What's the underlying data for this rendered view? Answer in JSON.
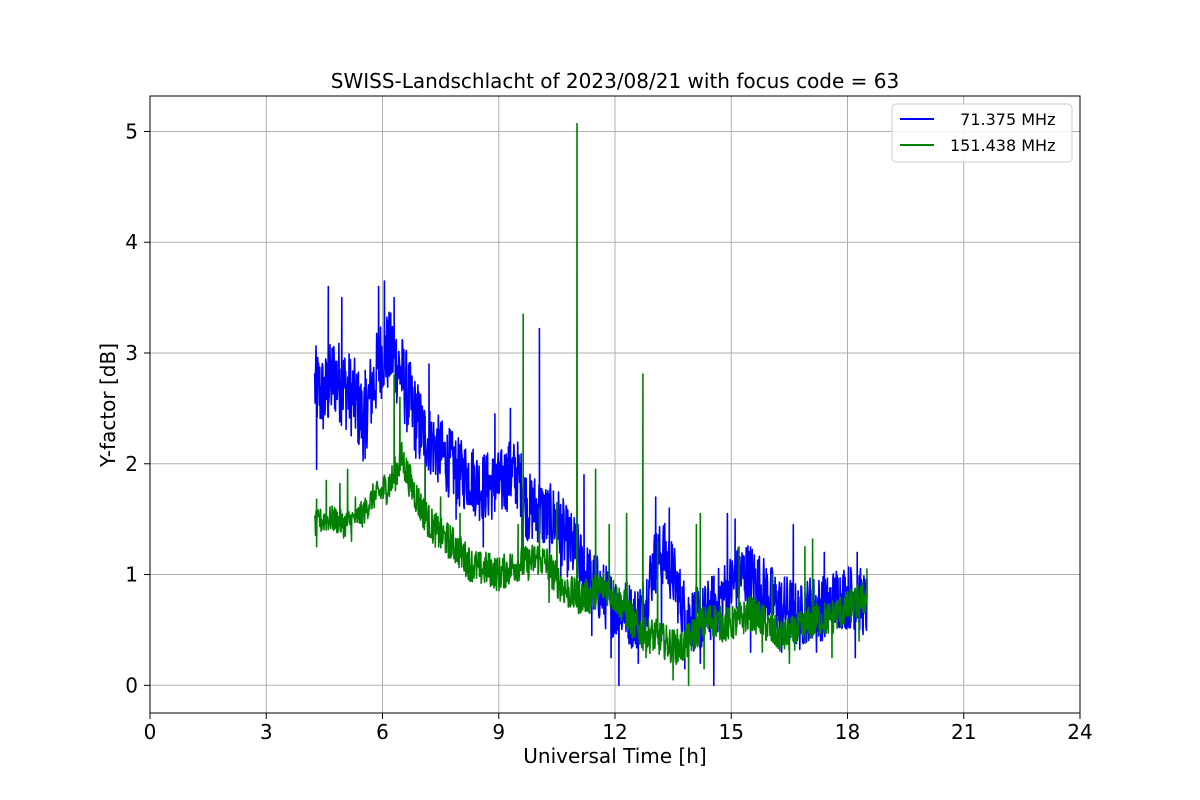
{
  "chart_data": {
    "type": "line",
    "title": "SWISS-Landschlacht of 2023/08/21 with focus code = 63",
    "xlabel": "Universal Time [h]",
    "ylabel": "Y-factor [dB]",
    "xlim": [
      0,
      24
    ],
    "ylim": [
      -0.25,
      5.32
    ],
    "xticks": [
      0,
      3,
      6,
      9,
      12,
      15,
      18,
      21,
      24
    ],
    "yticks": [
      0,
      1,
      2,
      3,
      4,
      5
    ],
    "grid": true,
    "legend_position": "top-right",
    "series": [
      {
        "name": "  71.375 MHz",
        "color": "#0000ff",
        "x": [
          4.25,
          4.5,
          4.75,
          5.0,
          5.25,
          5.5,
          5.75,
          6.0,
          6.25,
          6.5,
          6.75,
          7.0,
          7.25,
          7.5,
          7.75,
          8.0,
          8.25,
          8.5,
          8.75,
          9.0,
          9.25,
          9.5,
          9.75,
          10.0,
          10.25,
          10.5,
          10.75,
          11.0,
          11.25,
          11.5,
          11.75,
          12.0,
          12.25,
          12.5,
          12.75,
          13.0,
          13.25,
          13.5,
          13.75,
          14.0,
          14.25,
          14.5,
          14.75,
          15.0,
          15.25,
          15.5,
          15.75,
          16.0,
          16.25,
          16.5,
          16.75,
          17.0,
          17.25,
          17.5,
          17.75,
          18.0,
          18.25,
          18.5
        ],
        "y": [
          2.7,
          2.6,
          2.8,
          2.7,
          2.6,
          2.4,
          2.7,
          3.0,
          3.0,
          2.8,
          2.5,
          2.3,
          2.2,
          2.1,
          2.0,
          1.9,
          1.9,
          1.8,
          1.8,
          1.8,
          1.9,
          1.9,
          1.6,
          1.6,
          1.5,
          1.5,
          1.3,
          1.2,
          1.0,
          0.9,
          0.8,
          0.7,
          0.7,
          0.6,
          0.7,
          1.1,
          1.2,
          1.0,
          0.7,
          0.6,
          0.6,
          0.7,
          0.8,
          0.9,
          1.0,
          1.0,
          0.9,
          0.8,
          0.7,
          0.7,
          0.6,
          0.7,
          0.7,
          0.7,
          0.8,
          0.8,
          0.8,
          0.7
        ],
        "peaks": {
          "x": [
            4.6,
            4.95,
            5.9,
            6.05,
            6.3,
            7.2,
            8.9,
            9.3,
            10.05,
            11.2,
            13.05,
            13.4,
            14.9,
            15.1,
            16.6,
            17.4,
            18.25
          ],
          "y": [
            3.6,
            3.5,
            3.6,
            3.65,
            3.5,
            2.9,
            2.45,
            2.5,
            3.22,
            1.9,
            1.7,
            1.6,
            1.55,
            1.5,
            1.45,
            1.2,
            1.2
          ]
        },
        "dips": {
          "x": [
            4.3,
            5.55,
            7.1,
            7.9,
            8.6,
            9.6,
            10.6,
            11.4,
            11.9,
            12.1,
            12.6,
            13.2,
            13.8,
            14.2,
            14.55,
            15.5,
            16.3,
            17.2,
            18.2
          ],
          "y": [
            1.95,
            2.05,
            1.7,
            1.5,
            1.25,
            1.1,
            0.95,
            0.45,
            0.25,
            0.0,
            0.2,
            0.4,
            0.15,
            0.2,
            0.0,
            0.3,
            0.3,
            0.3,
            0.25
          ]
        }
      },
      {
        "name": "151.438 MHz",
        "color": "#008000",
        "x": [
          4.25,
          4.5,
          4.75,
          5.0,
          5.25,
          5.5,
          5.75,
          6.0,
          6.25,
          6.5,
          6.75,
          7.0,
          7.25,
          7.5,
          7.75,
          8.0,
          8.25,
          8.5,
          8.75,
          9.0,
          9.25,
          9.5,
          9.75,
          10.0,
          10.25,
          10.5,
          10.75,
          11.0,
          11.25,
          11.5,
          11.75,
          12.0,
          12.25,
          12.5,
          12.75,
          13.0,
          13.25,
          13.5,
          13.75,
          14.0,
          14.25,
          14.5,
          14.75,
          15.0,
          15.25,
          15.5,
          15.75,
          16.0,
          16.25,
          16.5,
          16.75,
          17.0,
          17.25,
          17.5,
          17.75,
          18.0,
          18.25,
          18.5
        ],
        "y": [
          1.45,
          1.5,
          1.5,
          1.45,
          1.5,
          1.55,
          1.7,
          1.75,
          1.85,
          2.05,
          1.8,
          1.6,
          1.45,
          1.35,
          1.3,
          1.2,
          1.1,
          1.05,
          1.05,
          1.0,
          1.05,
          1.1,
          1.1,
          1.15,
          1.1,
          0.95,
          0.85,
          0.8,
          0.8,
          0.85,
          0.9,
          0.8,
          0.7,
          0.55,
          0.45,
          0.45,
          0.4,
          0.35,
          0.35,
          0.45,
          0.55,
          0.6,
          0.55,
          0.55,
          0.6,
          0.65,
          0.6,
          0.5,
          0.45,
          0.45,
          0.5,
          0.55,
          0.6,
          0.6,
          0.65,
          0.7,
          0.75,
          0.8
        ],
        "peaks": {
          "x": [
            4.3,
            4.55,
            4.9,
            5.1,
            5.3,
            6.3,
            6.45,
            7.1,
            7.5,
            8.0,
            9.5,
            9.63,
            10.05,
            10.5,
            11.02,
            11.5,
            11.85,
            12.3,
            12.72,
            13.1,
            14.1,
            14.2,
            15.2,
            16.05,
            16.9,
            17.1,
            18.5
          ],
          "y": [
            1.68,
            1.85,
            1.82,
            1.95,
            1.7,
            2.8,
            2.6,
            2.0,
            1.7,
            1.55,
            1.45,
            3.35,
            1.6,
            1.65,
            5.07,
            1.95,
            1.45,
            1.55,
            2.81,
            1.3,
            1.45,
            1.55,
            1.25,
            1.0,
            1.25,
            1.32,
            1.05
          ]
        },
        "dips": {
          "x": [
            4.3,
            5.2,
            7.7,
            8.8,
            10.3,
            11.35,
            12.8,
            13.5,
            13.9,
            14.3,
            15.8,
            16.5,
            17.6,
            18.3
          ],
          "y": [
            1.25,
            1.3,
            1.15,
            0.9,
            0.75,
            0.65,
            0.25,
            0.05,
            0.0,
            0.15,
            0.3,
            0.2,
            0.25,
            0.4
          ]
        }
      }
    ]
  }
}
